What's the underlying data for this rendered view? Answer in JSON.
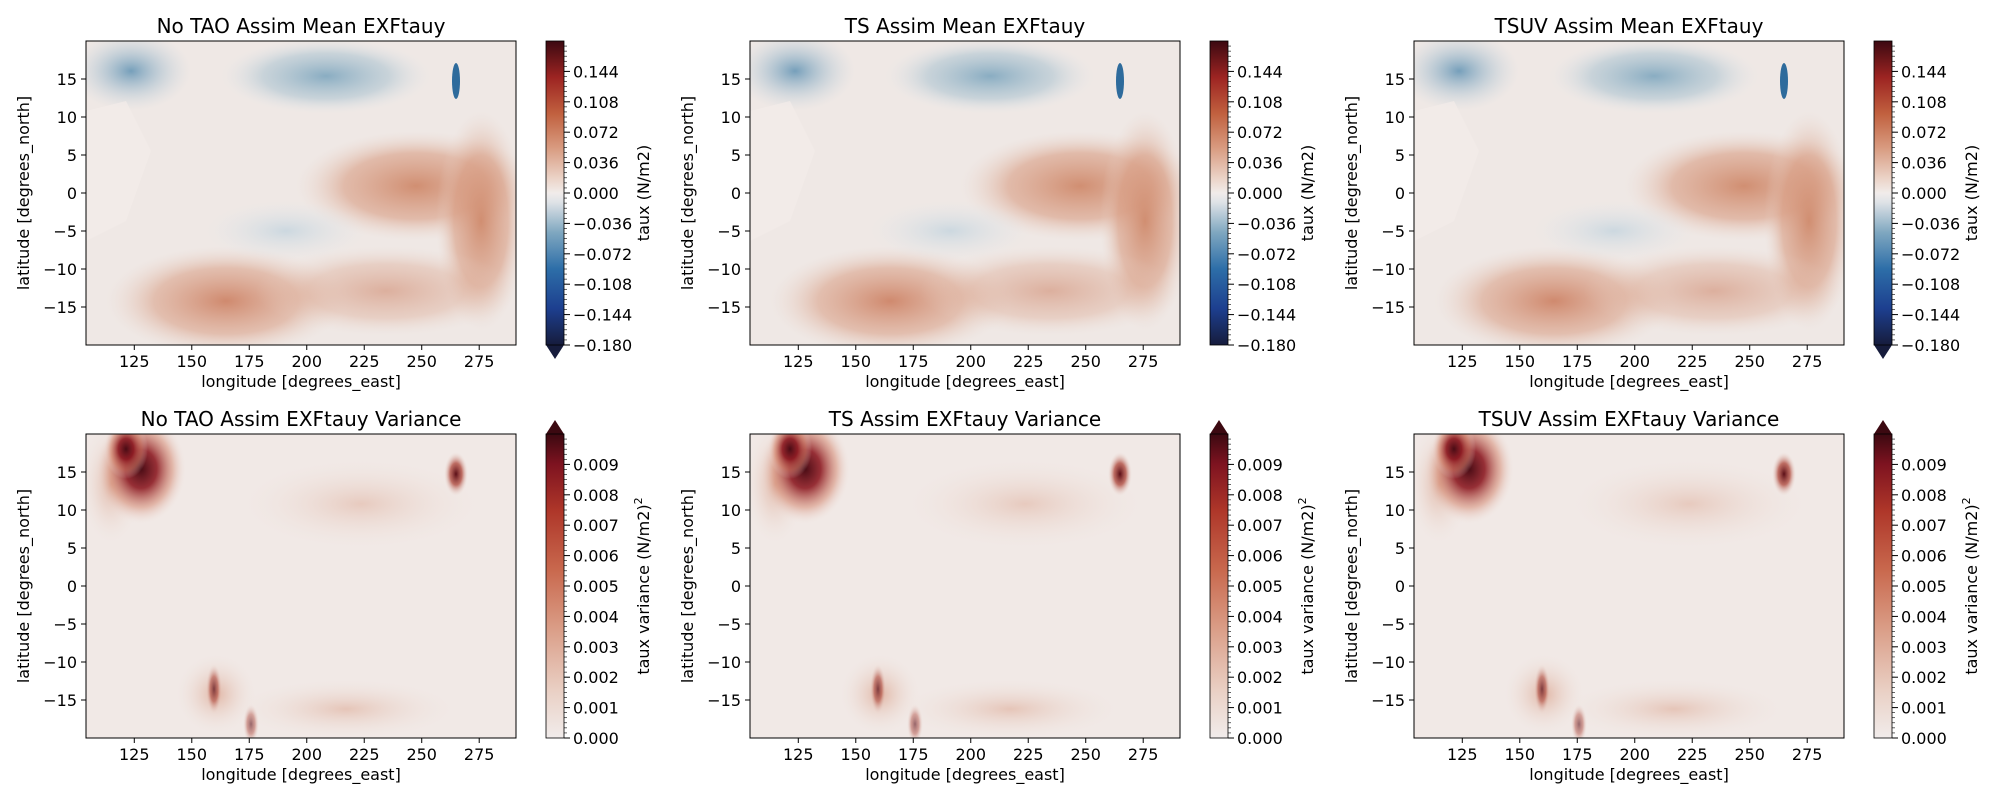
{
  "chart_data": [
    {
      "type": "heatmap",
      "title": "No TAO Assim Mean EXFtauy",
      "xlabel": "longitude [degrees_east]",
      "ylabel": "latitude [degrees_north]",
      "xlim": [
        104,
        291
      ],
      "ylim": [
        -20,
        20
      ],
      "xticks": [
        125,
        150,
        175,
        200,
        225,
        250,
        275
      ],
      "yticks": [
        15,
        10,
        5,
        0,
        -5,
        -10,
        -15
      ],
      "colorbar": {
        "label": "taux (N/m2)",
        "label_sup": "",
        "cmap": "balance",
        "range": [
          -0.18,
          0.18
        ],
        "ticks": [
          0.144,
          0.108,
          0.072,
          0.036,
          0.0,
          -0.036,
          -0.072,
          -0.108,
          -0.144,
          -0.18
        ],
        "tick_labels": [
          "0.144",
          "0.108",
          "0.072",
          "0.036",
          "0.000",
          "−0.036",
          "−0.072",
          "−0.108",
          "−0.144",
          "−0.180"
        ],
        "extend": "min"
      }
    },
    {
      "type": "heatmap",
      "title": "TS Assim Mean EXFtauy",
      "xlabel": "longitude [degrees_east]",
      "ylabel": "latitude [degrees_north]",
      "xlim": [
        104,
        291
      ],
      "ylim": [
        -20,
        20
      ],
      "xticks": [
        125,
        150,
        175,
        200,
        225,
        250,
        275
      ],
      "yticks": [
        15,
        10,
        5,
        0,
        -5,
        -10,
        -15
      ],
      "colorbar": {
        "label": "taux (N/m2)",
        "label_sup": "",
        "cmap": "balance",
        "range": [
          -0.18,
          0.18
        ],
        "ticks": [
          0.144,
          0.108,
          0.072,
          0.036,
          0.0,
          -0.036,
          -0.072,
          -0.108,
          -0.144,
          -0.18
        ],
        "tick_labels": [
          "0.144",
          "0.108",
          "0.072",
          "0.036",
          "0.000",
          "−0.036",
          "−0.072",
          "−0.108",
          "−0.144",
          "−0.180"
        ],
        "extend": "none"
      }
    },
    {
      "type": "heatmap",
      "title": "TSUV Assim Mean EXFtauy",
      "xlabel": "longitude [degrees_east]",
      "ylabel": "latitude [degrees_north]",
      "xlim": [
        104,
        291
      ],
      "ylim": [
        -20,
        20
      ],
      "xticks": [
        125,
        150,
        175,
        200,
        225,
        250,
        275
      ],
      "yticks": [
        15,
        10,
        5,
        0,
        -5,
        -10,
        -15
      ],
      "colorbar": {
        "label": "taux (N/m2)",
        "label_sup": "",
        "cmap": "balance",
        "range": [
          -0.18,
          0.18
        ],
        "ticks": [
          0.144,
          0.108,
          0.072,
          0.036,
          0.0,
          -0.036,
          -0.072,
          -0.108,
          -0.144,
          -0.18
        ],
        "tick_labels": [
          "0.144",
          "0.108",
          "0.072",
          "0.036",
          "0.000",
          "−0.036",
          "−0.072",
          "−0.108",
          "−0.144",
          "−0.180"
        ],
        "extend": "min"
      }
    },
    {
      "type": "heatmap",
      "title": "No TAO Assim EXFtauy Variance",
      "xlabel": "longitude [degrees_east]",
      "ylabel": "latitude [degrees_north]",
      "xlim": [
        104,
        291
      ],
      "ylim": [
        -20,
        20
      ],
      "xticks": [
        125,
        150,
        175,
        200,
        225,
        250,
        275
      ],
      "yticks": [
        15,
        10,
        5,
        0,
        -5,
        -10,
        -15
      ],
      "colorbar": {
        "label": "taux variance (N/m2)",
        "label_sup": "2",
        "cmap": "amp",
        "range": [
          0,
          0.01
        ],
        "ticks": [
          0.009,
          0.008,
          0.007,
          0.006,
          0.005,
          0.004,
          0.003,
          0.002,
          0.001,
          0.0
        ],
        "tick_labels": [
          "0.009",
          "0.008",
          "0.007",
          "0.006",
          "0.005",
          "0.004",
          "0.003",
          "0.002",
          "0.001",
          "0.000"
        ],
        "extend": "max"
      }
    },
    {
      "type": "heatmap",
      "title": "TS Assim EXFtauy Variance",
      "xlabel": "longitude [degrees_east]",
      "ylabel": "latitude [degrees_north]",
      "xlim": [
        104,
        291
      ],
      "ylim": [
        -20,
        20
      ],
      "xticks": [
        125,
        150,
        175,
        200,
        225,
        250,
        275
      ],
      "yticks": [
        15,
        10,
        5,
        0,
        -5,
        -10,
        -15
      ],
      "colorbar": {
        "label": "taux variance (N/m2)",
        "label_sup": "2",
        "cmap": "amp",
        "range": [
          0,
          0.01
        ],
        "ticks": [
          0.009,
          0.008,
          0.007,
          0.006,
          0.005,
          0.004,
          0.003,
          0.002,
          0.001,
          0.0
        ],
        "tick_labels": [
          "0.009",
          "0.008",
          "0.007",
          "0.006",
          "0.005",
          "0.004",
          "0.003",
          "0.002",
          "0.001",
          "0.000"
        ],
        "extend": "max"
      }
    },
    {
      "type": "heatmap",
      "title": "TSUV Assim EXFtauy Variance",
      "xlabel": "longitude [degrees_east]",
      "ylabel": "latitude [degrees_north]",
      "xlim": [
        104,
        291
      ],
      "ylim": [
        -20,
        20
      ],
      "xticks": [
        125,
        150,
        175,
        200,
        225,
        250,
        275
      ],
      "yticks": [
        15,
        10,
        5,
        0,
        -5,
        -10,
        -15
      ],
      "colorbar": {
        "label": "taux variance (N/m2)",
        "label_sup": "2",
        "cmap": "amp",
        "range": [
          0,
          0.01
        ],
        "ticks": [
          0.009,
          0.008,
          0.007,
          0.006,
          0.005,
          0.004,
          0.003,
          0.002,
          0.001,
          0.0
        ],
        "tick_labels": [
          "0.009",
          "0.008",
          "0.007",
          "0.006",
          "0.005",
          "0.004",
          "0.003",
          "0.002",
          "0.001",
          "0.000"
        ],
        "extend": "max"
      }
    }
  ]
}
